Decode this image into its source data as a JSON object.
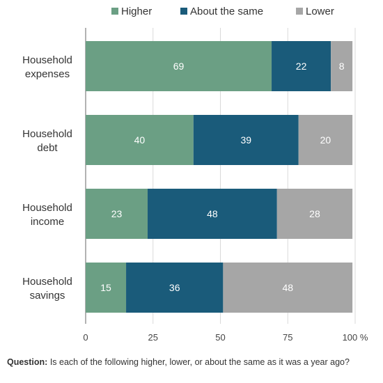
{
  "chart_data": {
    "type": "bar",
    "orientation": "horizontal",
    "stacked": true,
    "categories": [
      [
        "Household",
        "expenses"
      ],
      [
        "Household",
        "debt"
      ],
      [
        "Household",
        "income"
      ],
      [
        "Household",
        "savings"
      ]
    ],
    "series": [
      {
        "name": "Higher",
        "color": "#6b9f84",
        "values": [
          69,
          40,
          23,
          15
        ]
      },
      {
        "name": "About the same",
        "color": "#1a5b7a",
        "values": [
          22,
          39,
          48,
          36
        ]
      },
      {
        "name": "Lower",
        "color": "#a6a6a6",
        "values": [
          8,
          20,
          28,
          48
        ]
      }
    ],
    "xlim": [
      0,
      100
    ],
    "xticks": [
      "0",
      "25",
      "50",
      "75",
      "100 %"
    ],
    "grid": true,
    "legend_position": "top"
  },
  "note": {
    "label": "Question:",
    "text": " Is each of the following higher, lower, or about the same as it was a year ago?"
  }
}
